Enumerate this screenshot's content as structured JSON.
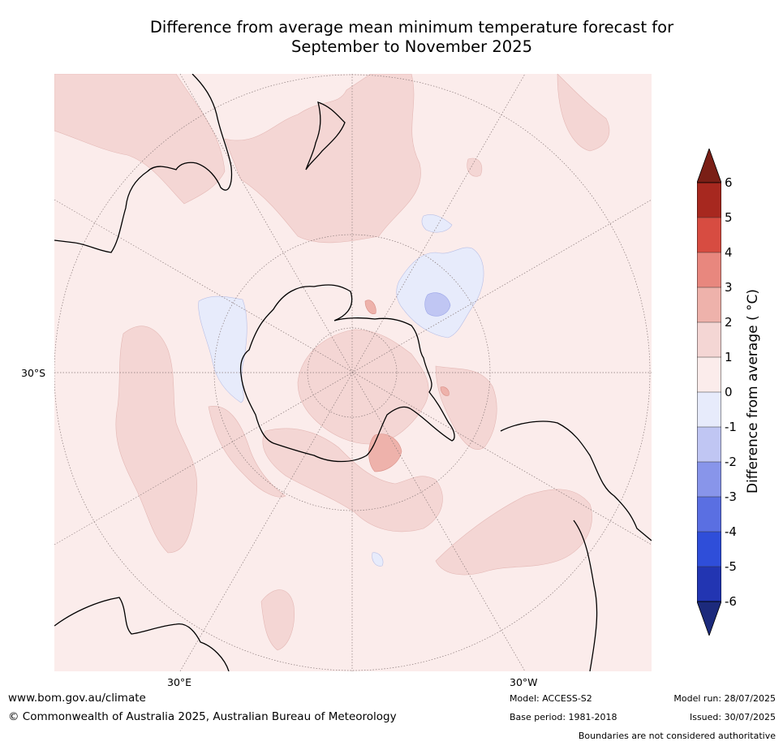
{
  "title": {
    "line1": "Difference from average mean minimum temperature forecast for",
    "line2": "September to November 2025"
  },
  "map": {
    "projection": "south-polar-stereographic",
    "lat_label": "30°S",
    "lon_labels": {
      "east": "30°E",
      "west": "30°W"
    },
    "background_color": "#fbeceb",
    "land_outline_color": "#000000"
  },
  "colorbar": {
    "label": "Difference from average ( °C)",
    "ticks": [
      "6",
      "5",
      "4",
      "3",
      "2",
      "1",
      "0",
      "-1",
      "-2",
      "-3",
      "-4",
      "-5",
      "-6"
    ],
    "colors": {
      "above_6": "#7a1f16",
      "5_to_6": "#a7281f",
      "4_to_5": "#d74c41",
      "3_to_4": "#e8877e",
      "2_to_3": "#eeb2ab",
      "1_to_2": "#f4d6d4",
      "0_to_1": "#fbeceb",
      "m1_to_0": "#e7ebfb",
      "m2_to_m1": "#c0c6f3",
      "m3_to_m2": "#8895ea",
      "m4_to_m3": "#5a6fe2",
      "m5_to_m4": "#2f4ed9",
      "m6_to_m5": "#2235b2",
      "below_m6": "#1c2a7c"
    }
  },
  "footer": {
    "website": "www.bom.gov.au/climate",
    "copyright": "© Commonwealth of Australia 2025, Australian Bureau of Meteorology",
    "model": "Model: ACCESS-S2",
    "base_period": "Base period: 1981-2018",
    "model_run": "Model run: 28/07/2025",
    "issued": "Issued: 30/07/2025",
    "disclaimer": "Boundaries are not considered authoritative"
  }
}
